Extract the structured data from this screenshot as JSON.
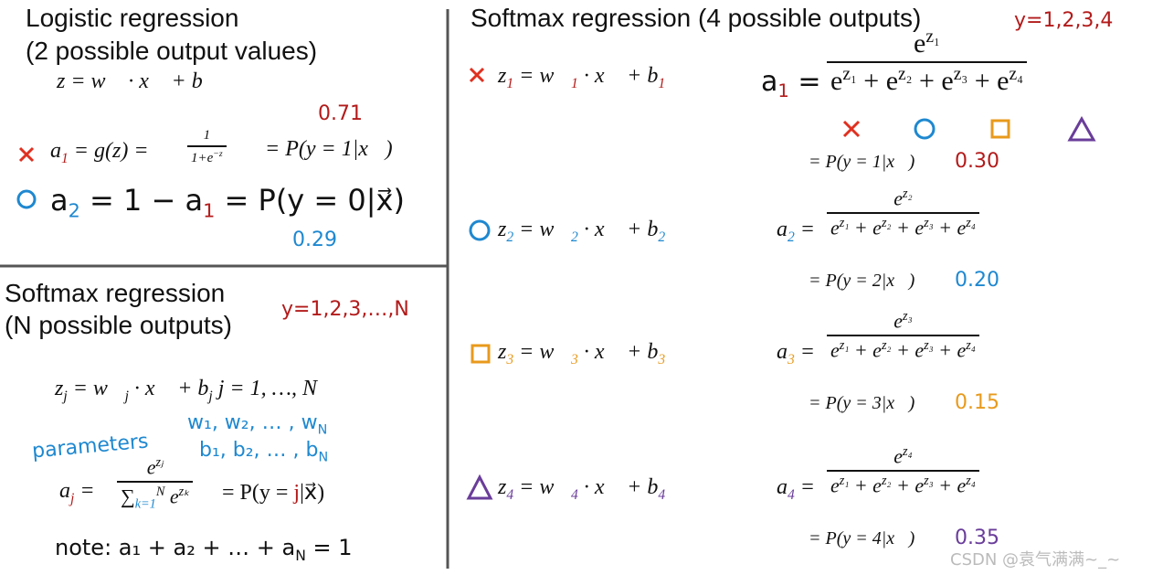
{
  "left_top": {
    "title": "Logistic regression",
    "subtitle": "(2 possible output values)",
    "z_eq": [
      "z = w⃗ · x⃗ + b"
    ],
    "a1_eq": [
      "a",
      {
        "text": "1",
        "pos": "sub",
        "color": "#b31b1b"
      },
      " = g(z) = "
    ],
    "a1_num": [
      "1"
    ],
    "a1_den": [
      "1+e",
      {
        "text": "−z",
        "pos": "sup"
      }
    ],
    "a1_prob": [
      "= P(y = 1|x⃗)"
    ],
    "a1_value": "0.71",
    "a2_eq": [
      "a",
      {
        "text": "2",
        "pos": "sub",
        "color": "#1e88d0"
      },
      " = 1 − a",
      {
        "text": "1",
        "pos": "sub",
        "color": "#b31b1b"
      },
      " = P(y = 0|x⃗)"
    ],
    "a2_value": "0.29"
  },
  "left_bottom": {
    "title": "Softmax regression",
    "subtitle": "(N possible outputs)",
    "y_label": "y=1,2,3,…,N",
    "zj_eq": [
      "z",
      {
        "text": "j",
        "pos": "sub"
      },
      " = w⃗",
      {
        "text": "j",
        "pos": "sub"
      },
      " · x⃗ + b",
      {
        "text": "j",
        "pos": "sub"
      },
      "   j = 1, …, N"
    ],
    "parameters": "parameters",
    "w_list": [
      "w₁, w₂, … , w",
      {
        "text": "N",
        "pos": "sub"
      }
    ],
    "b_list": [
      "b₁, b₂, … , b",
      {
        "text": "N",
        "pos": "sub"
      }
    ],
    "aj_label": [
      "a",
      {
        "text": "j",
        "pos": "sub",
        "color": "#b31b1b"
      },
      " ="
    ],
    "aj_num": [
      "e",
      {
        "text": "zⱼ",
        "pos": "sup"
      }
    ],
    "aj_den": [
      "∑",
      {
        "text": "k=1",
        "pos": "sub",
        "color": "#1e88d0"
      },
      {
        "text": "N",
        "pos": "sup"
      },
      " e",
      {
        "text": "zₖ",
        "pos": "sup"
      }
    ],
    "aj_prob": [
      "= P(y = ",
      {
        "text": "j",
        "color": "#b31b1b"
      },
      "|x⃗)"
    ],
    "note": [
      "note:  a₁ + a₂ + … + a",
      {
        "text": "N",
        "pos": "sub"
      },
      " = 1"
    ]
  },
  "right": {
    "title": "Softmax regression (4 possible outputs)",
    "y_label": "y=1,2,3,4",
    "rows": [
      {
        "z_eq": [
          "z",
          {
            "text": "1",
            "pos": "sub",
            "color": "#b31b1b"
          },
          " = w⃗",
          {
            "text": "1",
            "pos": "sub",
            "color": "#b31b1b"
          },
          " · x⃗ + b",
          {
            "text": "1",
            "pos": "sub",
            "color": "#b31b1b"
          }
        ],
        "a_label": [
          "a",
          {
            "text": "1",
            "pos": "sub",
            "color": "#b31b1b"
          },
          " ="
        ],
        "num": [
          "e",
          {
            "text": "z₁",
            "pos": "sup"
          }
        ],
        "den": [
          "e",
          {
            "text": "z₁",
            "pos": "sup"
          },
          " + e",
          {
            "text": "z₂",
            "pos": "sup"
          },
          " + e",
          {
            "text": "z₃",
            "pos": "sup"
          },
          " + e",
          {
            "text": "z₄",
            "pos": "sup"
          }
        ],
        "prob": "= P(y = 1|x⃗)",
        "value": "0.30",
        "color": "#b31b1b"
      },
      {
        "z_eq": [
          "z",
          {
            "text": "2",
            "pos": "sub",
            "color": "#1e88d0"
          },
          " = w⃗",
          {
            "text": "2",
            "pos": "sub",
            "color": "#1e88d0"
          },
          " · x⃗ + b",
          {
            "text": "2",
            "pos": "sub",
            "color": "#1e88d0"
          }
        ],
        "a_label": [
          "a",
          {
            "text": "2",
            "pos": "sub",
            "color": "#1e88d0"
          },
          " ="
        ],
        "num": [
          "e",
          {
            "text": "z₂",
            "pos": "sup"
          }
        ],
        "den": [
          "e",
          {
            "text": "z₁",
            "pos": "sup"
          },
          " + e",
          {
            "text": "z₂",
            "pos": "sup"
          },
          " + e",
          {
            "text": "z₃",
            "pos": "sup"
          },
          " + e",
          {
            "text": "z₄",
            "pos": "sup"
          }
        ],
        "prob": "= P(y = 2|x⃗)",
        "value": "0.20",
        "color": "#1e88d0"
      },
      {
        "z_eq": [
          "z",
          {
            "text": "3",
            "pos": "sub",
            "color": "#e89a1c"
          },
          " = w⃗",
          {
            "text": "3",
            "pos": "sub",
            "color": "#e89a1c"
          },
          " · x⃗ + b",
          {
            "text": "3",
            "pos": "sub",
            "color": "#e89a1c"
          }
        ],
        "a_label": [
          "a",
          {
            "text": "3",
            "pos": "sub",
            "color": "#e89a1c"
          },
          " ="
        ],
        "num": [
          "e",
          {
            "text": "z₃",
            "pos": "sup"
          }
        ],
        "den": [
          "e",
          {
            "text": "z₁",
            "pos": "sup"
          },
          " + e",
          {
            "text": "z₂",
            "pos": "sup"
          },
          " + e",
          {
            "text": "z₃",
            "pos": "sup"
          },
          " + e",
          {
            "text": "z₄",
            "pos": "sup"
          }
        ],
        "prob": "= P(y = 3|x⃗)",
        "value": "0.15",
        "color": "#e89a1c"
      },
      {
        "z_eq": [
          "z",
          {
            "text": "4",
            "pos": "sub",
            "color": "#6a3d9a"
          },
          " = w⃗",
          {
            "text": "4",
            "pos": "sub",
            "color": "#6a3d9a"
          },
          " · x⃗ + b",
          {
            "text": "4",
            "pos": "sub",
            "color": "#6a3d9a"
          }
        ],
        "a_label": [
          "a",
          {
            "text": "4",
            "pos": "sub",
            "color": "#6a3d9a"
          },
          " ="
        ],
        "num": [
          "e",
          {
            "text": "z₄",
            "pos": "sup"
          }
        ],
        "den": [
          "e",
          {
            "text": "z₁",
            "pos": "sup"
          },
          " + e",
          {
            "text": "z₂",
            "pos": "sup"
          },
          " + e",
          {
            "text": "z₃",
            "pos": "sup"
          },
          " + e",
          {
            "text": "z₄",
            "pos": "sup"
          }
        ],
        "prob": "= P(y = 4|x⃗)",
        "value": "0.35",
        "color": "#6a3d9a"
      }
    ]
  },
  "watermark": "CSDN @袁气满满~_~"
}
